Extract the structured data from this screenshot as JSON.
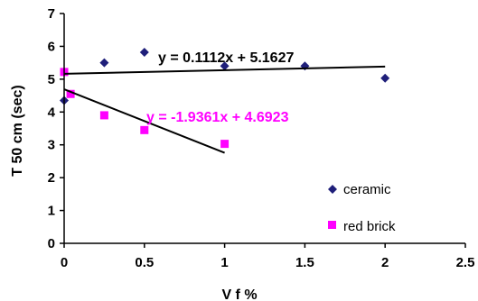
{
  "chart_data": {
    "type": "scatter",
    "xlabel": "V f %",
    "ylabel": "T 50 cm (sec)",
    "xlim": [
      0,
      2.5
    ],
    "ylim": [
      0,
      7
    ],
    "x_ticks": [
      "0",
      "0.5",
      "1",
      "1.5",
      "2",
      "2.5"
    ],
    "y_ticks": [
      "0",
      "1",
      "2",
      "3",
      "4",
      "5",
      "6",
      "7"
    ],
    "grid": false,
    "legend_position": "bottom-right",
    "series": [
      {
        "name": "ceramic",
        "marker": "diamond",
        "color": "#1f1f7a",
        "points": [
          [
            0,
            4.35
          ],
          [
            0.25,
            5.5
          ],
          [
            0.5,
            5.82
          ],
          [
            1.0,
            5.4
          ],
          [
            1.5,
            5.4
          ],
          [
            2.0,
            5.03
          ]
        ],
        "trendline": {
          "slope": 0.1112,
          "intercept": 5.1627,
          "x_range": [
            0,
            2.0
          ],
          "equation": "y = 0.1112x + 5.1627",
          "equation_color": "#000000",
          "line_color": "#000000"
        }
      },
      {
        "name": "red brick",
        "marker": "square",
        "color": "#ff00ff",
        "points": [
          [
            0,
            5.22
          ],
          [
            0.04,
            4.55
          ],
          [
            0.25,
            3.9
          ],
          [
            0.5,
            3.45
          ],
          [
            1.0,
            3.03
          ]
        ],
        "trendline": {
          "slope": -1.9361,
          "intercept": 4.6923,
          "x_range": [
            0,
            1.0
          ],
          "equation": "y = -1.9361x + 4.6923",
          "equation_color": "#ff00ff",
          "line_color": "#000000"
        }
      }
    ]
  }
}
